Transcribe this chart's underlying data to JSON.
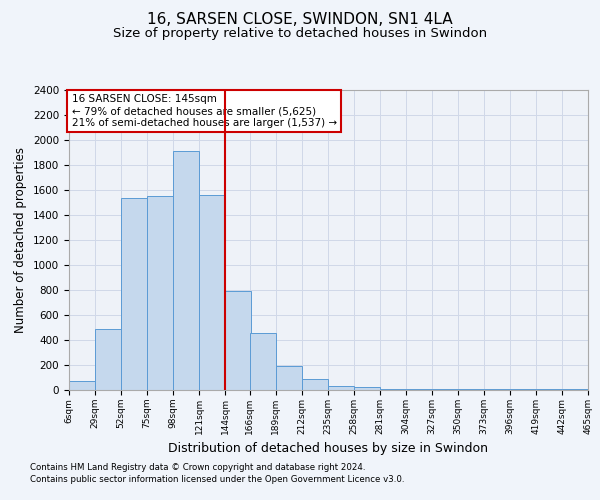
{
  "title": "16, SARSEN CLOSE, SWINDON, SN1 4LA",
  "subtitle": "Size of property relative to detached houses in Swindon",
  "xlabel": "Distribution of detached houses by size in Swindon",
  "ylabel": "Number of detached properties",
  "footnote1": "Contains HM Land Registry data © Crown copyright and database right 2024.",
  "footnote2": "Contains public sector information licensed under the Open Government Licence v3.0.",
  "annotation_line1": "16 SARSEN CLOSE: 145sqm",
  "annotation_line2": "← 79% of detached houses are smaller (5,625)",
  "annotation_line3": "21% of semi-detached houses are larger (1,537) →",
  "bar_left_edges": [
    6,
    29,
    52,
    75,
    98,
    121,
    144,
    166,
    189,
    212,
    235,
    258,
    281,
    304,
    327,
    350,
    373,
    396,
    419,
    442
  ],
  "bar_widths": [
    23,
    23,
    23,
    23,
    23,
    23,
    23,
    23,
    23,
    23,
    23,
    23,
    23,
    23,
    23,
    23,
    23,
    23,
    23,
    23
  ],
  "bar_heights": [
    75,
    490,
    1540,
    1550,
    1910,
    1560,
    790,
    460,
    190,
    85,
    30,
    25,
    10,
    10,
    10,
    10,
    10,
    10,
    10,
    10
  ],
  "bar_color": "#c5d8ed",
  "bar_edge_color": "#5b9bd5",
  "vline_x": 144,
  "vline_color": "#cc0000",
  "ylim": [
    0,
    2400
  ],
  "xlim": [
    6,
    465
  ],
  "yticks": [
    0,
    200,
    400,
    600,
    800,
    1000,
    1200,
    1400,
    1600,
    1800,
    2000,
    2200,
    2400
  ],
  "xtick_labels": [
    "6sqm",
    "29sqm",
    "52sqm",
    "75sqm",
    "98sqm",
    "121sqm",
    "144sqm",
    "166sqm",
    "189sqm",
    "212sqm",
    "235sqm",
    "258sqm",
    "281sqm",
    "304sqm",
    "327sqm",
    "350sqm",
    "373sqm",
    "396sqm",
    "419sqm",
    "442sqm",
    "465sqm"
  ],
  "xtick_positions": [
    6,
    29,
    52,
    75,
    98,
    121,
    144,
    166,
    189,
    212,
    235,
    258,
    281,
    304,
    327,
    350,
    373,
    396,
    419,
    442,
    465
  ],
  "grid_color": "#d0d8e8",
  "background_color": "#f0f4fa",
  "axes_background": "#eef2f8",
  "title_fontsize": 11,
  "subtitle_fontsize": 9.5,
  "annotation_box_color": "#ffffff",
  "annotation_box_edge": "#cc0000"
}
